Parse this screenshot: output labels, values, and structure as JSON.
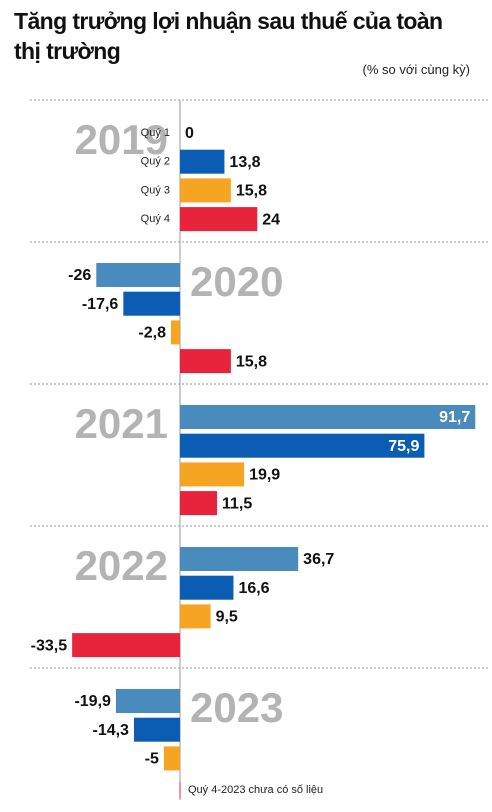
{
  "chart_data": {
    "type": "bar",
    "orientation": "horizontal",
    "title": "Tăng trưởng lợi nhuận sau thuế của toàn thị trường",
    "subtitle": "(% so với cùng kỳ)",
    "categories": [
      "2019",
      "2020",
      "2021",
      "2022",
      "2023"
    ],
    "series": [
      {
        "name": "Quý 1",
        "color": "#4a8bbd",
        "values": [
          0,
          -26,
          91.7,
          36.7,
          -19.9
        ],
        "value_labels": [
          "0",
          "-26",
          "91,7",
          "36,7",
          "-19,9"
        ]
      },
      {
        "name": "Quý 2",
        "color": "#0b5cb3",
        "values": [
          13.8,
          -17.6,
          75.9,
          16.6,
          -14.3
        ],
        "value_labels": [
          "13,8",
          "-17,6",
          "75,9",
          "16,6",
          "-14,3"
        ]
      },
      {
        "name": "Quý 3",
        "color": "#f6a523",
        "values": [
          15.8,
          -2.8,
          19.9,
          9.5,
          -5
        ],
        "value_labels": [
          "15,8",
          "-2,8",
          "19,9",
          "9,5",
          "-5"
        ]
      },
      {
        "name": "Quý 4",
        "color": "#e8243c",
        "values": [
          24,
          15.8,
          11.5,
          -33.5,
          null
        ],
        "value_labels": [
          "24",
          "15,8",
          "11,5",
          "-33,5",
          null
        ]
      }
    ],
    "note": "Quý 4-2023 chưa có số liệu"
  }
}
